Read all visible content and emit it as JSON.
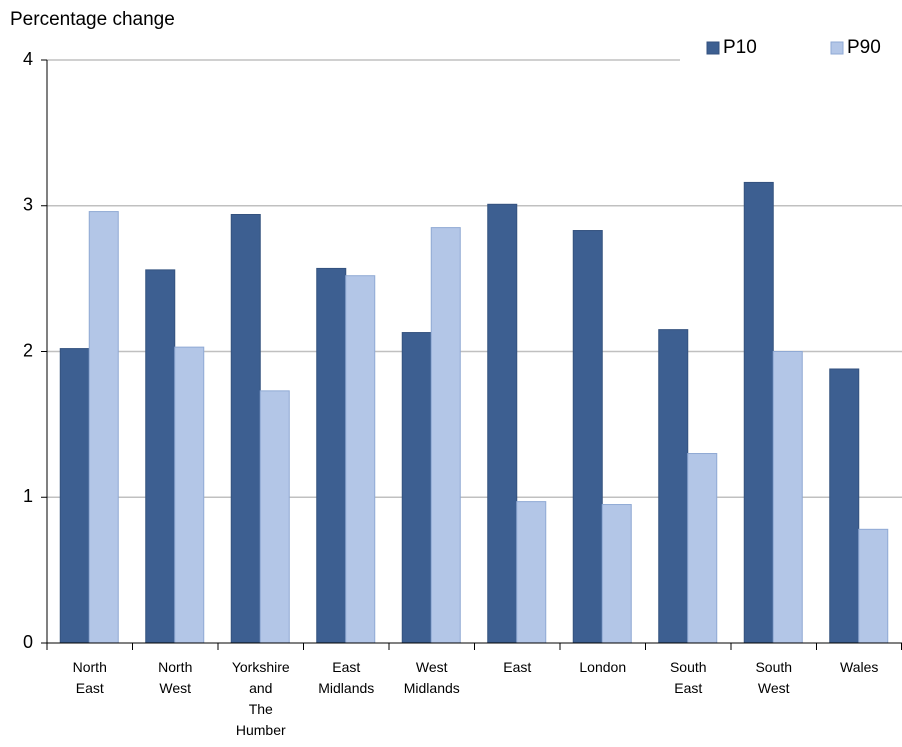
{
  "chart_data": {
    "type": "bar",
    "y_label": "Percentage change",
    "categories": [
      "North\nEast",
      "North\nWest",
      "Yorkshire\nand\nThe\nHumber",
      "East\nMidlands",
      "West\nMidlands",
      "East",
      "London",
      "South\nEast",
      "South\nWest",
      "Wales"
    ],
    "series": [
      {
        "name": "P10",
        "color": "#3d5f91",
        "values": [
          2.02,
          2.56,
          2.94,
          2.57,
          2.13,
          3.01,
          2.83,
          2.15,
          3.16,
          1.88
        ]
      },
      {
        "name": "P90",
        "color": "#b3c6e7",
        "values": [
          2.96,
          2.03,
          1.73,
          2.52,
          2.85,
          0.97,
          0.95,
          1.3,
          2.0,
          0.78
        ]
      }
    ],
    "ylim": [
      0,
      4
    ],
    "yticks": [
      0,
      1,
      2,
      3,
      4
    ],
    "grid": true,
    "legend": "top-right"
  }
}
